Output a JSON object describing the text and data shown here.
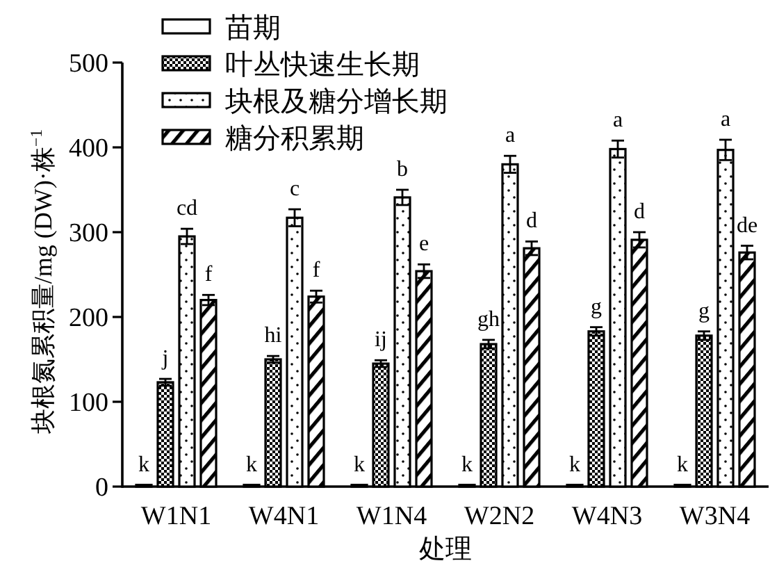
{
  "chart_data": {
    "type": "bar",
    "xlabel": "处理",
    "ylabel": "块根氮累积量/mg (DW)·株$^{−1}$",
    "categories": [
      "W1N1",
      "W4N1",
      "W1N4",
      "W2N2",
      "W4N3",
      "W3N4"
    ],
    "ylim": [
      0,
      500
    ],
    "yticks": [
      0,
      100,
      200,
      300,
      400,
      500
    ],
    "legend": "top left",
    "series": [
      {
        "name": "苗期",
        "color": "#000000",
        "values": [
          2,
          2,
          2,
          2,
          2,
          2
        ],
        "value_labels": [
          "k",
          "k",
          "k",
          "k",
          "k",
          "k"
        ]
      },
      {
        "name": "叶丛快速生长期",
        "color": "#000000",
        "values": [
          123,
          150,
          145,
          168,
          183,
          178
        ],
        "errors": [
          4,
          4,
          4,
          5,
          5,
          5
        ],
        "value_labels": [
          "j",
          "hi",
          "ij",
          "gh",
          "g",
          "g"
        ]
      },
      {
        "name": "块根及糖分增长期",
        "color": "#000000",
        "values": [
          295,
          317,
          341,
          380,
          398,
          397
        ],
        "errors": [
          9,
          10,
          9,
          10,
          10,
          12
        ],
        "value_labels": [
          "cd",
          "c",
          "b",
          "a",
          "a",
          "a"
        ]
      },
      {
        "name": "糖分积累期",
        "color": "#000000",
        "values": [
          220,
          224,
          254,
          281,
          291,
          276
        ],
        "errors": [
          6,
          7,
          8,
          8,
          9,
          8
        ],
        "value_labels": [
          "f",
          "f",
          "e",
          "d",
          "d",
          "de"
        ]
      }
    ]
  }
}
